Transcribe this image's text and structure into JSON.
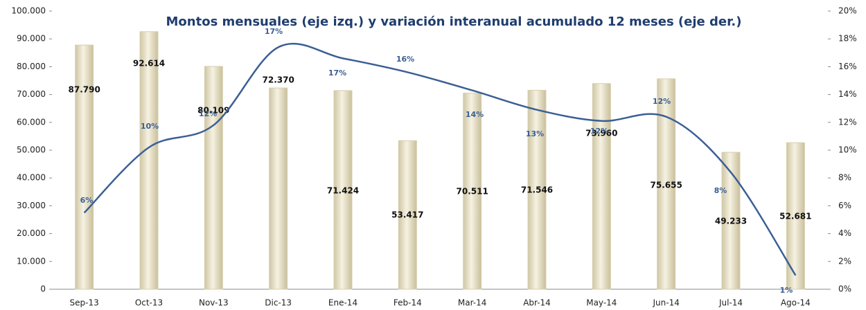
{
  "chart_data": {
    "type": "bar-line",
    "title": "Montos mensuales (eje izq.) y variación interanual acumulado 12 meses (eje der.)",
    "categories": [
      "Sep-13",
      "Oct-13",
      "Nov-13",
      "Dic-13",
      "Ene-14",
      "Feb-14",
      "Mar-14",
      "Abr-14",
      "May-14",
      "Jun-14",
      "Jul-14",
      "Ago-14"
    ],
    "series": [
      {
        "type": "bar",
        "color": "#e8e0c4",
        "values": [
          87790,
          92614,
          80109,
          72370,
          71424,
          53417,
          70511,
          71546,
          73960,
          75655,
          49233,
          52681
        ],
        "value_labels": [
          "87.790",
          "92.614",
          "80.109",
          "72.370",
          "71.424",
          "53.417",
          "70.511",
          "71.546",
          "73.960",
          "75.655",
          "49.233",
          "52.681"
        ]
      },
      {
        "type": "line",
        "axis": "y2",
        "color": "#3a5f95",
        "values": [
          5.5,
          10.2,
          11.8,
          17.4,
          16.6,
          15.6,
          14.3,
          12.9,
          12.1,
          12.4,
          8.4,
          1.0
        ],
        "value_labels": [
          "6%",
          "10%",
          "12%",
          "17%",
          "17%",
          "16%",
          "14%",
          "13%",
          "12%",
          "12%",
          "8%",
          "1%"
        ]
      }
    ],
    "ylim": [
      0,
      100000
    ],
    "yticks": [
      {
        "value": 0,
        "label": "0"
      },
      {
        "value": 10000,
        "label": "10.000"
      },
      {
        "value": 20000,
        "label": "20.000"
      },
      {
        "value": 30000,
        "label": "30.000"
      },
      {
        "value": 40000,
        "label": "40.000"
      },
      {
        "value": 50000,
        "label": "50.000"
      },
      {
        "value": 60000,
        "label": "60.000"
      },
      {
        "value": 70000,
        "label": "70.000"
      },
      {
        "value": 80000,
        "label": "80.000"
      },
      {
        "value": 90000,
        "label": "90.000"
      },
      {
        "value": 100000,
        "label": "100.000"
      }
    ],
    "y2lim": [
      0,
      20
    ],
    "y2ticks": [
      {
        "value": 0,
        "label": "0%"
      },
      {
        "value": 2,
        "label": "2%"
      },
      {
        "value": 4,
        "label": "4%"
      },
      {
        "value": 6,
        "label": "6%"
      },
      {
        "value": 8,
        "label": "8%"
      },
      {
        "value": 10,
        "label": "10%"
      },
      {
        "value": 12,
        "label": "12%"
      },
      {
        "value": 14,
        "label": "14%"
      },
      {
        "value": 16,
        "label": "16%"
      },
      {
        "value": 18,
        "label": "18%"
      },
      {
        "value": 20,
        "label": "20%"
      }
    ]
  }
}
